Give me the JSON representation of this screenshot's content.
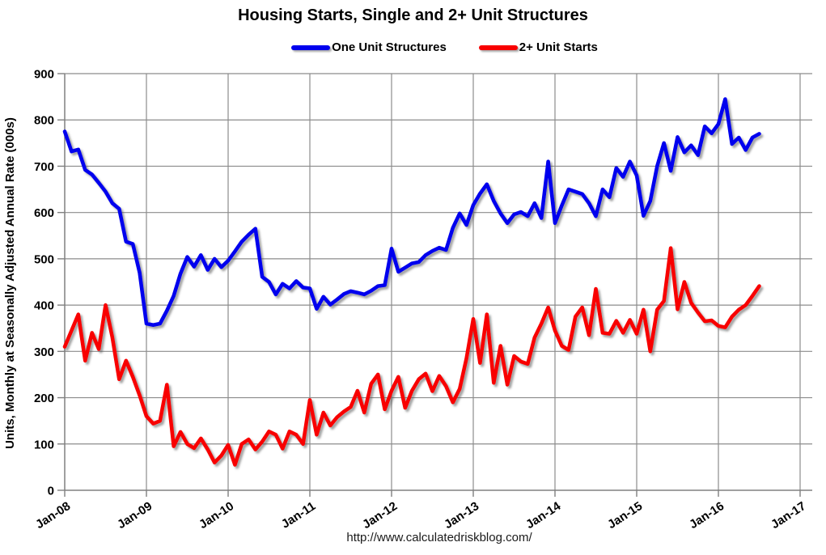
{
  "title": "Housing Starts, Single and 2+ Unit Structures",
  "footer_url": "http://www.calculatedriskblog.com/",
  "colors": {
    "one_unit": "#0000EE",
    "two_plus_unit": "#F80000",
    "gridline": "#8c8c8c",
    "axis": "#808080",
    "text": "#000000"
  },
  "legend": {
    "items": [
      {
        "label": "One Unit Structures",
        "color": "#0000EE"
      },
      {
        "label": "2+ Unit Starts",
        "color": "#F80000"
      }
    ]
  },
  "y_axis": {
    "title": "Units, Monthly at Seasonally Adjusted Annual Rate (000s)",
    "ticks": [
      0,
      100,
      200,
      300,
      400,
      500,
      600,
      700,
      800,
      900
    ]
  },
  "x_axis": {
    "tick_labels": [
      "Jan-08",
      "Jan-09",
      "Jan-10",
      "Jan-11",
      "Jan-12",
      "Jan-13",
      "Jan-14",
      "Jan-15",
      "Jan-16",
      "Jan-17"
    ]
  },
  "chart_data": {
    "type": "line",
    "x_start": "Jan-2008",
    "x_frequency": "monthly",
    "x_end": "Jul-2016",
    "ylim": [
      0,
      900
    ],
    "grid": true,
    "legend_position": "top-center",
    "title": "Housing Starts, Single and 2+ Unit Structures",
    "ylabel": "Units, Monthly at Seasonally Adjusted Annual Rate (000s)",
    "series": [
      {
        "name": "One Unit Structures",
        "color": "#0000EE",
        "values": [
          775,
          732,
          736,
          692,
          682,
          664,
          645,
          620,
          608,
          537,
          532,
          470,
          360,
          357,
          360,
          388,
          420,
          468,
          504,
          483,
          508,
          476,
          500,
          482,
          496,
          516,
          537,
          552,
          565,
          461,
          450,
          423,
          446,
          436,
          452,
          438,
          436,
          392,
          418,
          401,
          412,
          424,
          430,
          427,
          423,
          431,
          441,
          443,
          522,
          472,
          481,
          490,
          493,
          508,
          517,
          524,
          519,
          567,
          598,
          573,
          616,
          641,
          661,
          625,
          598,
          577,
          596,
          601,
          592,
          620,
          588,
          710,
          577,
          615,
          650,
          645,
          640,
          620,
          592,
          650,
          633,
          696,
          677,
          710,
          680,
          593,
          625,
          700,
          750,
          690,
          763,
          730,
          745,
          724,
          786,
          771,
          791,
          845,
          748,
          762,
          735,
          762,
          770
        ]
      },
      {
        "name": "2+ Unit Starts",
        "color": "#F80000",
        "values": [
          310,
          345,
          380,
          280,
          340,
          305,
          400,
          330,
          240,
          280,
          245,
          205,
          160,
          144,
          150,
          228,
          95,
          126,
          100,
          91,
          112,
          88,
          60,
          75,
          98,
          55,
          100,
          110,
          88,
          105,
          127,
          120,
          90,
          127,
          120,
          100,
          195,
          120,
          168,
          140,
          158,
          170,
          180,
          215,
          168,
          230,
          250,
          175,
          215,
          245,
          178,
          215,
          240,
          252,
          214,
          247,
          225,
          190,
          219,
          285,
          370,
          275,
          380,
          232,
          312,
          228,
          290,
          278,
          273,
          330,
          360,
          395,
          345,
          312,
          303,
          375,
          395,
          335,
          435,
          340,
          338,
          366,
          340,
          368,
          338,
          390,
          300,
          390,
          409,
          523,
          391,
          450,
          405,
          384,
          365,
          367,
          355,
          352,
          375,
          390,
          400,
          420,
          441
        ]
      }
    ]
  }
}
